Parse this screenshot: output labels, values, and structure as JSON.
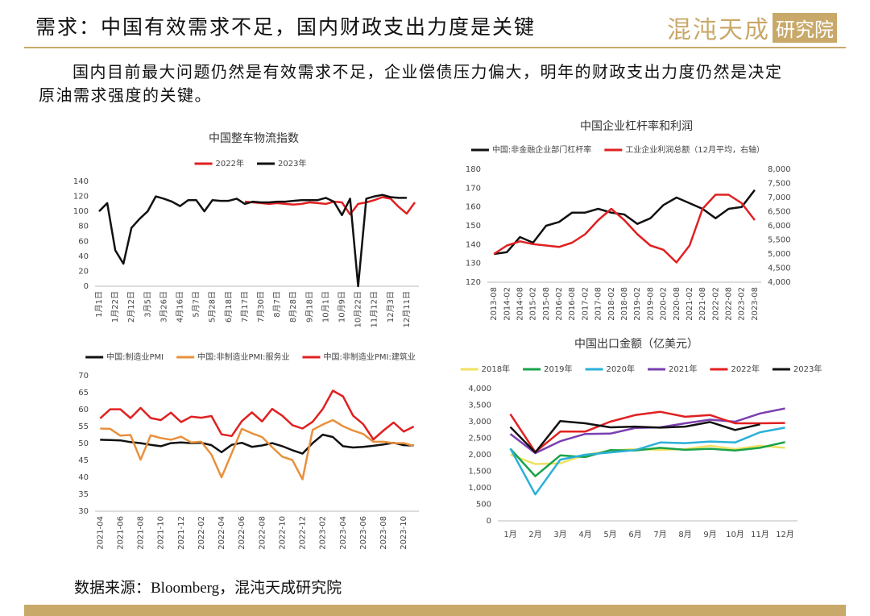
{
  "header": {
    "title": "需求：中国有效需求不足，国内财政支出力度是关键",
    "logo_name": "混沌天成",
    "logo_unit": "研究院"
  },
  "body": {
    "lines": [
      "国内目前最大问题仍然是有效需求不足，企业偿债压力偏大，明年的财政支出力度仍然是决定",
      "原油需求强度的关键。"
    ]
  },
  "source": "数据来源：Bloomberg，混沌天成研究院",
  "chart_data": [
    {
      "type": "line",
      "title": "中国整车物流指数",
      "categories": [
        "1月1日",
        null,
        "1月22日",
        null,
        "2月12日",
        null,
        "3月5日",
        null,
        "3月26日",
        null,
        "4月16日",
        null,
        "5月7日",
        null,
        "5月28日",
        null,
        "6月18日",
        null,
        "7月17日",
        null,
        "7月30日",
        null,
        "8月7日",
        null,
        "8月28日",
        null,
        "9月18日",
        null,
        "10月1日",
        null,
        "10月9日",
        null,
        "10月22日",
        null,
        "11月12日",
        null,
        "12月3日",
        null,
        "12月11日",
        null
      ],
      "series": [
        {
          "name": "2022年",
          "color": "#e02020",
          "values": [
            null,
            null,
            null,
            null,
            null,
            null,
            null,
            null,
            null,
            null,
            null,
            null,
            null,
            null,
            null,
            null,
            null,
            null,
            113,
            112,
            111,
            110,
            111,
            110,
            109,
            110,
            112,
            111,
            110,
            113,
            112,
            96,
            110,
            112,
            115,
            119,
            117,
            106,
            97,
            112
          ]
        },
        {
          "name": "2023年",
          "color": "#111111",
          "values": [
            100,
            111,
            48,
            30,
            78,
            90,
            100,
            120,
            117,
            113,
            107,
            115,
            115,
            100,
            115,
            114,
            114,
            117,
            110,
            113,
            112,
            112,
            113,
            113,
            114,
            115,
            115,
            115,
            118,
            113,
            95,
            117,
            0,
            117,
            120,
            122,
            119,
            118,
            118,
            null
          ]
        }
      ],
      "ylim": [
        0,
        140
      ],
      "yticks": [
        0,
        20,
        40,
        60,
        80,
        100,
        120,
        140
      ],
      "grid": false,
      "legend": "top"
    },
    {
      "type": "line",
      "title": "中国企业杠杆率和利润",
      "categories": [
        "2013-08",
        "2014-02",
        "2014-08",
        "2015-02",
        "2015-08",
        "2016-02",
        "2016-08",
        "2017-02",
        "2017-08",
        "2018-02",
        "2018-08",
        "2019-02",
        "2019-08",
        "2020-02",
        "2020-08",
        "2021-02",
        "2021-08",
        "2022-02",
        "2022-08",
        "2023-02",
        "2023-08"
      ],
      "series": [
        {
          "name": "中国:非金融企业部门杠杆率",
          "color": "#111111",
          "values": [
            135,
            136,
            144,
            141,
            150,
            152,
            157,
            157,
            159,
            157,
            156,
            151,
            154,
            161,
            165,
            162,
            159,
            154,
            159,
            160,
            169
          ]
        },
        {
          "name": "工业企业利润总额（12月平均，右轴）",
          "color": "#e02020",
          "axis": "y2",
          "values": [
            5000,
            5300,
            5450,
            5350,
            5300,
            5250,
            5400,
            5700,
            6200,
            6600,
            6200,
            5700,
            5300,
            5150,
            4700,
            5300,
            6600,
            7100,
            7100,
            6800,
            6200
          ]
        }
      ],
      "ylim": [
        120,
        180
      ],
      "yticks": [
        120,
        130,
        140,
        150,
        160,
        170,
        180
      ],
      "y2lim": [
        4000,
        8000
      ],
      "y2ticks": [
        {
          "value": 4000,
          "label": "4,000"
        },
        {
          "value": 4500,
          "label": "4,500"
        },
        {
          "value": 5000,
          "label": "5,000"
        },
        {
          "value": 5500,
          "label": "5,500"
        },
        {
          "value": 6000,
          "label": "6,000"
        },
        {
          "value": 6500,
          "label": "6,500"
        },
        {
          "value": 7000,
          "label": "7,000"
        },
        {
          "value": 7500,
          "label": "7,500"
        },
        {
          "value": 8000,
          "label": "8,000"
        }
      ],
      "grid": false,
      "legend": "top"
    },
    {
      "type": "line",
      "categories": [
        "2021-04",
        null,
        "2021-06",
        null,
        "2021-08",
        null,
        "2021-10",
        null,
        "2021-12",
        null,
        "2022-02",
        null,
        "2022-04",
        null,
        "2022-06",
        null,
        "2022-08",
        null,
        "2022-10",
        null,
        "2022-12",
        null,
        "2023-02",
        null,
        "2023-04",
        null,
        "2023-06",
        null,
        "2023-08",
        null,
        "2023-10",
        null
      ],
      "series": [
        {
          "name": "中国:制造业PMI",
          "color": "#111111",
          "values": [
            51.1,
            51.0,
            50.9,
            50.4,
            50.1,
            49.6,
            49.2,
            50.1,
            50.3,
            50.1,
            50.2,
            49.5,
            47.4,
            49.6,
            50.2,
            49.0,
            49.4,
            50.1,
            49.2,
            48.0,
            47.0,
            50.1,
            52.6,
            51.9,
            49.2,
            48.8,
            49.0,
            49.3,
            49.7,
            50.2,
            49.5,
            49.4
          ]
        },
        {
          "name": "中国:非制造业PMI:服务业",
          "color": "#e8903c",
          "values": [
            54.4,
            54.3,
            52.3,
            52.5,
            45.2,
            52.4,
            51.6,
            51.1,
            52.0,
            50.3,
            50.5,
            46.7,
            40.0,
            47.1,
            54.3,
            53.0,
            51.9,
            48.9,
            46.1,
            45.1,
            39.4,
            54.0,
            55.6,
            56.9,
            55.1,
            53.8,
            52.8,
            50.5,
            50.5,
            50.1,
            50.1,
            49.3
          ]
        },
        {
          "name": "中国:非制造业PMI:建筑业",
          "color": "#e02020",
          "values": [
            57.4,
            60.1,
            60.1,
            57.5,
            60.5,
            57.5,
            56.9,
            59.1,
            56.3,
            57.9,
            57.6,
            58.1,
            52.7,
            52.2,
            56.6,
            59.2,
            56.5,
            60.2,
            58.2,
            55.4,
            54.4,
            56.4,
            60.2,
            65.6,
            63.9,
            58.2,
            55.7,
            51.2,
            53.8,
            56.2,
            53.5,
            55.0
          ]
        }
      ],
      "ylim": [
        30,
        70
      ],
      "yticks": [
        30,
        35,
        40,
        45,
        50,
        55,
        60,
        65,
        70
      ],
      "grid": false,
      "legend": "top"
    },
    {
      "type": "line",
      "title": "中国出口金额（亿美元）",
      "categories": [
        "1月",
        "2月",
        "3月",
        "4月",
        "5月",
        "6月",
        "7月",
        "8月",
        "9月",
        "10月",
        "11月",
        "12月"
      ],
      "series": [
        {
          "name": "2018年",
          "color": "#f0e060",
          "values": [
            2000,
            1720,
            1740,
            2000,
            2120,
            2170,
            2150,
            2170,
            2270,
            2170,
            2270,
            2210
          ]
        },
        {
          "name": "2019年",
          "color": "#1aa34a",
          "values": [
            2180,
            1350,
            1980,
            1930,
            2140,
            2130,
            2210,
            2150,
            2180,
            2130,
            2210,
            2380
          ]
        },
        {
          "name": "2020年",
          "color": "#2ab0d8",
          "values": [
            2190,
            800,
            1850,
            2000,
            2070,
            2140,
            2370,
            2350,
            2400,
            2370,
            2680,
            2820
          ]
        },
        {
          "name": "2021年",
          "color": "#7a3fb0",
          "values": [
            2630,
            2050,
            2410,
            2630,
            2640,
            2810,
            2830,
            2950,
            3060,
            3000,
            3250,
            3400
          ]
        },
        {
          "name": "2022年",
          "color": "#e02020",
          "values": [
            3230,
            2080,
            2700,
            2700,
            3000,
            3200,
            3300,
            3150,
            3200,
            2950,
            2950,
            2960
          ]
        },
        {
          "name": "2023年",
          "color": "#111111",
          "values": [
            2840,
            2070,
            3020,
            2950,
            2830,
            2850,
            2820,
            2850,
            2990,
            2750,
            2920,
            null
          ]
        }
      ],
      "ylim": [
        0,
        4000
      ],
      "yticks": [
        0,
        500,
        {
          "value": 1000,
          "label": "1,000"
        },
        {
          "value": 1500,
          "label": "1,500"
        },
        {
          "value": 2000,
          "label": "2,000"
        },
        {
          "value": 2500,
          "label": "2,500"
        },
        {
          "value": 3000,
          "label": "3,000"
        },
        {
          "value": 3500,
          "label": "3,500"
        },
        {
          "value": 4000,
          "label": "4,000"
        }
      ],
      "grid": false,
      "legend": "top"
    }
  ]
}
